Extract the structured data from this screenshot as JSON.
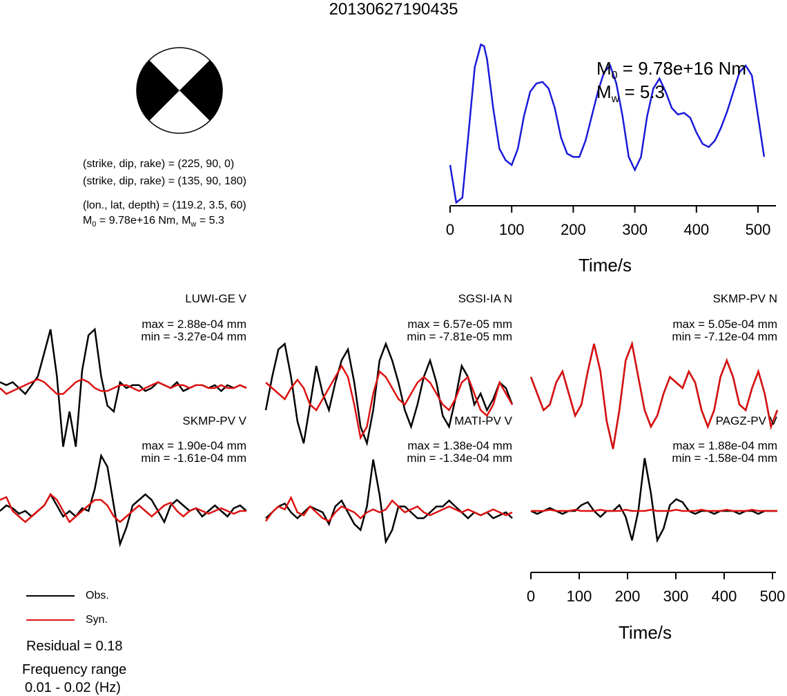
{
  "title": "20130627190435",
  "beachball": {
    "fill": "#000000",
    "stroke": "#000000"
  },
  "info_lines": {
    "plane1": "(strike, dip, rake) = (225, 90, 0)",
    "plane2": "(strike, dip, rake) = (135, 90, 180)",
    "location": "(lon., lat, depth) = (119.2, 3.5, 60)",
    "moment_prefix": "M",
    "moment_sub": "0",
    "moment_rest": " = 9.78e+16 Nm, M",
    "moment_sub2": "w",
    "moment_tail": " = 5.3"
  },
  "stf": {
    "m0_prefix": "M",
    "m0_sub": "0",
    "m0_rest": " = 9.78e+16 Nm",
    "mw_prefix": "M",
    "mw_sub": "w",
    "mw_rest": " = 5.3",
    "xlabel": "Time/s",
    "ticks": [
      "0",
      "100",
      "200",
      "300",
      "400",
      "500"
    ],
    "color": "#1a1ad9"
  },
  "stations": [
    {
      "name": "LUWI-GE V",
      "max": "max = 2.88e-04 mm",
      "min": "min = -3.27e-04 mm"
    },
    {
      "name": "SGSI-IA N",
      "max": "max = 6.57e-05 mm",
      "min": "min = -7.81e-05 mm"
    },
    {
      "name": "SKMP-PV N",
      "max": "max = 5.05e-04 mm",
      "min": "min = -7.12e-04 mm"
    },
    {
      "name": "SKMP-PV V",
      "max": "max = 1.90e-04 mm",
      "min": "min = -1.61e-04 mm"
    },
    {
      "name": "MATI-PV V",
      "max": "max = 1.38e-04 mm",
      "min": "min = -1.34e-04 mm"
    },
    {
      "name": "PAGZ-PV V",
      "max": "max = 1.88e-04 mm",
      "min": "min = -1.58e-04 mm"
    }
  ],
  "wave_axis": {
    "xlabel": "Time/s",
    "ticks": [
      "0",
      "100",
      "200",
      "300",
      "400",
      "500"
    ]
  },
  "legend": {
    "obs_label": "Obs.",
    "syn_label": "Syn.",
    "obs_color": "#000000",
    "syn_color": "#dd1111"
  },
  "footer": {
    "residual": "Residual = 0.18",
    "freq_label": "Frequency range",
    "freq_value": "0.01 - 0.02 (Hz)"
  },
  "chart_data": [
    {
      "type": "line",
      "title": "",
      "xlabel": "Time/s",
      "ylabel": "",
      "xlim": [
        0,
        510
      ],
      "series": [
        {
          "values_x": [
            0,
            10,
            20,
            30,
            40,
            50,
            55,
            60,
            70,
            80,
            90,
            100,
            110,
            120,
            130,
            140,
            150,
            160,
            170,
            180,
            190,
            200,
            210,
            220,
            230,
            240,
            250,
            260,
            270,
            280,
            290,
            300,
            310,
            320,
            330,
            340,
            350,
            360,
            370,
            380,
            390,
            400,
            410,
            420,
            430,
            440,
            450,
            460,
            470,
            480,
            490,
            500,
            510
          ],
          "values_y": [
            0.25,
            0.02,
            0.05,
            0.45,
            0.85,
            0.99,
            0.98,
            0.9,
            0.6,
            0.35,
            0.28,
            0.25,
            0.35,
            0.55,
            0.7,
            0.75,
            0.76,
            0.72,
            0.6,
            0.42,
            0.32,
            0.3,
            0.3,
            0.4,
            0.55,
            0.7,
            0.82,
            0.86,
            0.75,
            0.55,
            0.3,
            0.22,
            0.3,
            0.55,
            0.72,
            0.78,
            0.7,
            0.6,
            0.56,
            0.57,
            0.54,
            0.45,
            0.38,
            0.36,
            0.4,
            0.48,
            0.58,
            0.7,
            0.82,
            0.86,
            0.8,
            0.55,
            0.3
          ]
        }
      ]
    },
    {
      "type": "line",
      "title": "LUWI-GE V",
      "series": [
        {
          "name": "Obs.",
          "values": [
            0.1,
            0.05,
            0.1,
            0.0,
            -0.1,
            0.05,
            0.2,
            0.6,
            1.0,
            0.2,
            -1.0,
            -0.4,
            -1.0,
            0.3,
            0.9,
            1.0,
            0.2,
            -0.3,
            -0.4,
            0.1,
            0.0,
            0.05,
            0.05,
            -0.05,
            0.0,
            0.1,
            0.05,
            0.0,
            0.1,
            -0.05,
            0.0,
            0.05,
            0.05,
            0.0,
            0.05,
            -0.05,
            0.05,
            0.0,
            0.05,
            0.0
          ]
        },
        {
          "name": "Syn.",
          "values": [
            0.0,
            -0.1,
            -0.05,
            0.0,
            0.05,
            0.1,
            0.15,
            0.1,
            0.0,
            -0.1,
            -0.1,
            0.0,
            0.1,
            0.15,
            0.1,
            0.0,
            -0.05,
            -0.05,
            0.0,
            0.05,
            0.05,
            0.0,
            -0.05,
            0.0,
            0.05,
            0.1,
            0.05,
            0.0,
            0.05,
            0.05,
            0.0,
            0.05,
            0.05,
            0.0,
            0.0,
            0.05,
            0.0,
            0.0,
            0.05,
            0.0
          ]
        }
      ]
    },
    {
      "type": "line",
      "title": "SGSI-IA N",
      "series": [
        {
          "name": "Obs.",
          "values": [
            -0.3,
            0.3,
            0.8,
            0.9,
            0.3,
            -0.5,
            -0.9,
            -0.2,
            0.5,
            0.0,
            -0.3,
            0.2,
            0.6,
            0.8,
            0.2,
            -0.6,
            -0.9,
            -0.3,
            0.6,
            0.9,
            0.6,
            0.2,
            -0.3,
            -0.6,
            -0.2,
            0.3,
            0.6,
            0.2,
            -0.4,
            -0.6,
            -0.1,
            0.5,
            0.3,
            -0.2,
            0.0,
            -0.3,
            -0.1,
            0.2,
            0.1,
            -0.2
          ]
        },
        {
          "name": "Syn.",
          "values": [
            0.2,
            0.1,
            0.0,
            -0.1,
            0.1,
            0.25,
            0.1,
            -0.2,
            -0.3,
            -0.1,
            0.1,
            0.3,
            0.5,
            0.3,
            -0.2,
            -0.8,
            -0.6,
            0.0,
            0.4,
            0.3,
            0.1,
            -0.1,
            -0.2,
            0.0,
            0.2,
            0.3,
            0.2,
            0.0,
            -0.2,
            -0.3,
            -0.1,
            0.2,
            0.3,
            0.0,
            -0.3,
            -0.4,
            -0.2,
            0.2,
            0.0,
            -0.2
          ]
        }
      ]
    },
    {
      "type": "line",
      "title": "SKMP-PV N",
      "series": [
        {
          "name": "Obs.",
          "values": [
            0.3,
            0.0,
            -0.3,
            -0.2,
            0.2,
            0.4,
            0.0,
            -0.4,
            -0.2,
            0.4,
            0.9,
            0.4,
            -0.5,
            -1.0,
            -0.3,
            0.6,
            0.9,
            0.3,
            -0.3,
            -0.6,
            -0.4,
            0.0,
            0.3,
            0.2,
            0.1,
            0.4,
            0.2,
            -0.3,
            -0.6,
            -0.3,
            0.3,
            0.6,
            0.3,
            -0.2,
            -0.3,
            0.1,
            0.4,
            0.0,
            -0.6,
            -0.3
          ]
        },
        {
          "name": "Syn.",
          "values": [
            0.3,
            0.0,
            -0.3,
            -0.2,
            0.2,
            0.4,
            0.0,
            -0.4,
            -0.2,
            0.4,
            0.9,
            0.4,
            -0.5,
            -1.0,
            -0.3,
            0.6,
            0.9,
            0.3,
            -0.3,
            -0.6,
            -0.4,
            0.0,
            0.3,
            0.2,
            0.1,
            0.4,
            0.2,
            -0.3,
            -0.6,
            -0.3,
            0.3,
            0.6,
            0.3,
            -0.2,
            -0.3,
            0.1,
            0.4,
            0.0,
            -0.6,
            -0.3
          ]
        }
      ]
    },
    {
      "type": "line",
      "title": "SKMP-PV V",
      "series": [
        {
          "name": "Obs.",
          "values": [
            0.0,
            0.1,
            0.05,
            -0.05,
            0.0,
            -0.1,
            0.0,
            0.1,
            0.3,
            0.1,
            -0.1,
            0.0,
            -0.1,
            0.05,
            0.0,
            0.4,
            1.0,
            0.8,
            0.1,
            -0.6,
            -0.3,
            0.1,
            0.2,
            0.3,
            0.2,
            0.0,
            -0.2,
            0.1,
            0.2,
            0.1,
            0.0,
            0.05,
            -0.1,
            0.0,
            0.1,
            0.0,
            -0.1,
            0.05,
            0.1,
            0.0
          ]
        },
        {
          "name": "Syn.",
          "values": [
            0.2,
            0.25,
            0.0,
            -0.1,
            -0.2,
            -0.1,
            0.0,
            0.1,
            0.3,
            0.2,
            0.0,
            -0.2,
            -0.1,
            0.0,
            0.1,
            0.2,
            0.2,
            0.1,
            -0.1,
            -0.2,
            -0.1,
            0.0,
            0.1,
            0.0,
            -0.1,
            0.0,
            0.1,
            0.15,
            0.0,
            -0.1,
            0.0,
            0.05,
            0.0,
            -0.05,
            0.0,
            0.05,
            0.0,
            -0.05,
            0.0,
            0.0
          ]
        }
      ]
    },
    {
      "type": "line",
      "title": "MATI-PV V",
      "series": [
        {
          "name": "Obs.",
          "values": [
            -0.1,
            0.0,
            0.1,
            0.15,
            0.0,
            -0.1,
            0.0,
            0.1,
            0.05,
            0.0,
            -0.2,
            0.1,
            0.2,
            0.0,
            -0.2,
            -0.3,
            0.1,
            0.9,
            0.3,
            -0.5,
            -0.3,
            0.1,
            0.1,
            0.0,
            -0.1,
            -0.1,
            0.0,
            0.1,
            0.1,
            0.2,
            0.1,
            0.0,
            -0.1,
            0.0,
            -0.05,
            0.0,
            -0.1,
            -0.05,
            0.0,
            -0.1
          ]
        },
        {
          "name": "Syn.",
          "values": [
            -0.15,
            0.0,
            0.1,
            0.05,
            0.25,
            0.0,
            -0.05,
            0.1,
            0.0,
            -0.1,
            -0.15,
            0.0,
            0.1,
            0.05,
            0.0,
            -0.1,
            0.0,
            0.05,
            0.0,
            0.05,
            0.2,
            0.1,
            0.0,
            0.05,
            0.1,
            0.0,
            -0.05,
            0.0,
            0.05,
            0.1,
            0.05,
            0.0,
            0.05,
            0.0,
            -0.05,
            0.0,
            0.05,
            0.0,
            -0.05,
            0.0
          ]
        }
      ]
    },
    {
      "type": "line",
      "title": "PAGZ-PV V",
      "series": [
        {
          "name": "Obs.",
          "values": [
            0.0,
            -0.05,
            0.0,
            0.05,
            0.0,
            -0.05,
            0.0,
            0.0,
            0.1,
            0.15,
            0.0,
            -0.1,
            0.0,
            0.0,
            0.1,
            -0.1,
            -0.5,
            0.0,
            0.9,
            0.3,
            -0.5,
            -0.3,
            0.1,
            0.2,
            0.15,
            0.0,
            -0.05,
            0.0,
            0.0,
            -0.05,
            0.0,
            0.0,
            0.0,
            -0.05,
            0.0,
            0.0,
            -0.05,
            0.0,
            0.0,
            0.0
          ]
        },
        {
          "name": "Syn.",
          "values": [
            0.0,
            0.0,
            0.0,
            0.02,
            0.0,
            0.0,
            0.0,
            0.02,
            0.0,
            0.0,
            0.0,
            0.02,
            0.0,
            0.0,
            0.0,
            0.02,
            0.0,
            0.0,
            0.0,
            0.02,
            0.0,
            0.0,
            0.0,
            0.02,
            0.0,
            0.0,
            0.0,
            0.02,
            0.0,
            0.0,
            0.0,
            0.02,
            0.0,
            0.0,
            0.0,
            0.02,
            0.0,
            0.0,
            0.0,
            0.0
          ]
        }
      ]
    }
  ]
}
